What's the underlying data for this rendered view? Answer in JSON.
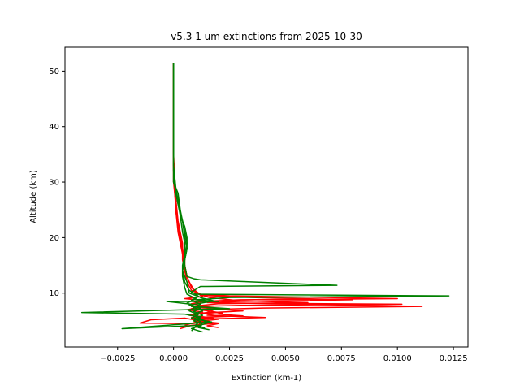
{
  "chart_data": {
    "type": "line",
    "title": "v5.3 1 um extinctions from 2025-10-30",
    "xlabel": "Extinction (km-1)",
    "ylabel": "Altitude (km)",
    "xlim": [
      -0.00485,
      0.01315
    ],
    "ylim": [
      0.3,
      54.3
    ],
    "grid": false,
    "xticks": [
      -0.0025,
      0.0,
      0.0025,
      0.005,
      0.0075,
      0.01,
      0.0125
    ],
    "xtick_labels": [
      "−0.0025",
      "0.0000",
      "0.0025",
      "0.0050",
      "0.0075",
      "0.0100",
      "0.0125"
    ],
    "yticks": [
      10,
      20,
      30,
      40,
      50
    ],
    "ytick_labels": [
      "10",
      "20",
      "30",
      "40",
      "50"
    ],
    "colors": {
      "red_series": "#ff0000",
      "green_series": "#008000"
    },
    "series": [
      {
        "color": "red",
        "points": [
          [
            0.0,
            51.5
          ],
          [
            0.0,
            40.0
          ],
          [
            0.0,
            30.0
          ],
          [
            0.0001,
            28.0
          ],
          [
            0.0001,
            25.0
          ],
          [
            0.0002,
            22.0
          ],
          [
            0.0003,
            20.0
          ],
          [
            0.0004,
            18.0
          ],
          [
            0.0005,
            16.0
          ],
          [
            0.0005,
            14.0
          ],
          [
            0.0006,
            12.0
          ],
          [
            0.0008,
            10.5
          ],
          [
            0.0012,
            9.8
          ],
          [
            0.0025,
            9.5
          ],
          [
            0.01,
            9.0
          ],
          [
            0.003,
            8.8
          ],
          [
            0.0012,
            8.5
          ],
          [
            0.0025,
            8.2
          ],
          [
            0.0102,
            8.0
          ],
          [
            0.003,
            7.8
          ],
          [
            0.0012,
            7.6
          ],
          [
            0.0008,
            7.2
          ],
          [
            0.0018,
            7.0
          ],
          [
            0.0015,
            6.5
          ],
          [
            0.0008,
            6.0
          ],
          [
            0.0018,
            5.5
          ],
          [
            0.001,
            5.0
          ],
          [
            0.002,
            4.6
          ],
          [
            0.0008,
            4.2
          ],
          [
            0.0003,
            3.6
          ]
        ]
      },
      {
        "color": "red",
        "points": [
          [
            0.0,
            51.5
          ],
          [
            0.0,
            35.0
          ],
          [
            0.0001,
            27.0
          ],
          [
            0.0002,
            23.0
          ],
          [
            0.0003,
            21.0
          ],
          [
            0.0004,
            19.0
          ],
          [
            0.0004,
            17.0
          ],
          [
            0.0005,
            15.0
          ],
          [
            0.0006,
            13.0
          ],
          [
            0.0008,
            11.0
          ],
          [
            0.0012,
            9.6
          ],
          [
            0.0035,
            9.2
          ],
          [
            0.008,
            8.8
          ],
          [
            0.003,
            8.5
          ],
          [
            0.0015,
            8.3
          ],
          [
            0.0111,
            7.6
          ],
          [
            0.004,
            7.3
          ],
          [
            0.0012,
            7.0
          ],
          [
            0.0022,
            6.4
          ],
          [
            0.0015,
            6.0
          ],
          [
            0.0041,
            5.6
          ],
          [
            0.001,
            5.3
          ],
          [
            0.0015,
            4.8
          ],
          [
            0.0008,
            4.5
          ],
          [
            -0.0015,
            4.6
          ],
          [
            -0.001,
            5.2
          ],
          [
            0.0005,
            5.5
          ],
          [
            0.0012,
            5.0
          ],
          [
            0.0005,
            4.2
          ]
        ]
      },
      {
        "color": "red",
        "points": [
          [
            0.0,
            51.5
          ],
          [
            0.0,
            30.0
          ],
          [
            0.0001,
            26.0
          ],
          [
            0.0002,
            22.0
          ],
          [
            0.0003,
            20.0
          ],
          [
            0.0004,
            18.0
          ],
          [
            0.0004,
            16.0
          ],
          [
            0.0005,
            14.0
          ],
          [
            0.0007,
            12.0
          ],
          [
            0.001,
            10.0
          ],
          [
            0.0016,
            9.2
          ],
          [
            0.003,
            8.6
          ],
          [
            0.006,
            8.3
          ],
          [
            0.002,
            8.1
          ],
          [
            0.0008,
            7.6
          ],
          [
            0.0017,
            7.2
          ],
          [
            0.0031,
            6.8
          ],
          [
            0.0012,
            6.4
          ],
          [
            0.0031,
            5.9
          ],
          [
            0.0008,
            5.6
          ],
          [
            0.002,
            5.3
          ],
          [
            0.0011,
            4.9
          ],
          [
            0.0012,
            4.2
          ],
          [
            0.001,
            3.8
          ]
        ]
      },
      {
        "color": "red",
        "points": [
          [
            0.0,
            51.5
          ],
          [
            0.0,
            32.0
          ],
          [
            0.0001,
            25.0
          ],
          [
            0.0002,
            21.0
          ],
          [
            0.0003,
            19.0
          ],
          [
            0.0004,
            17.0
          ],
          [
            0.0005,
            15.0
          ],
          [
            0.0006,
            13.0
          ],
          [
            0.0008,
            11.0
          ],
          [
            0.0013,
            9.4
          ],
          [
            0.0005,
            9.0
          ],
          [
            0.0015,
            8.6
          ],
          [
            0.0008,
            8.1
          ],
          [
            0.0014,
            7.6
          ],
          [
            0.0006,
            7.0
          ],
          [
            0.0013,
            6.6
          ],
          [
            0.0007,
            6.0
          ],
          [
            0.0016,
            5.5
          ],
          [
            0.001,
            5.0
          ],
          [
            0.002,
            4.5
          ],
          [
            0.0015,
            4.1
          ],
          [
            0.002,
            3.8
          ]
        ]
      },
      {
        "color": "green",
        "points": [
          [
            0.0,
            51.5
          ],
          [
            0.0,
            40.0
          ],
          [
            0.0,
            30.0
          ],
          [
            0.0002,
            28.0
          ],
          [
            0.0003,
            25.0
          ],
          [
            0.0004,
            23.0
          ],
          [
            0.0005,
            21.0
          ],
          [
            0.0006,
            19.0
          ],
          [
            0.0005,
            17.0
          ],
          [
            0.0005,
            15.0
          ],
          [
            0.0006,
            13.0
          ],
          [
            0.0009,
            12.6
          ],
          [
            0.0012,
            12.4
          ],
          [
            0.0073,
            11.4
          ],
          [
            0.0012,
            11.2
          ],
          [
            0.0008,
            10.2
          ],
          [
            0.001,
            9.8
          ],
          [
            0.0123,
            9.5
          ],
          [
            0.0025,
            9.2
          ],
          [
            0.001,
            8.8
          ],
          [
            0.002,
            8.5
          ],
          [
            -0.0003,
            8.5
          ],
          [
            0.0008,
            8.0
          ],
          [
            0.0008,
            7.6
          ],
          [
            0.0025,
            7.2
          ],
          [
            0.0005,
            7.0
          ],
          [
            -0.0041,
            6.5
          ],
          [
            0.0005,
            6.2
          ],
          [
            0.001,
            5.8
          ],
          [
            0.0013,
            5.2
          ],
          [
            0.0015,
            4.6
          ],
          [
            0.001,
            4.0
          ],
          [
            0.0008,
            3.2
          ]
        ]
      },
      {
        "color": "green",
        "points": [
          [
            0.0,
            51.5
          ],
          [
            0.0,
            30.0
          ],
          [
            0.0002,
            27.0
          ],
          [
            0.0003,
            24.0
          ],
          [
            0.0005,
            22.0
          ],
          [
            0.0006,
            20.0
          ],
          [
            0.0006,
            18.0
          ],
          [
            0.0005,
            16.0
          ],
          [
            0.0004,
            14.0
          ],
          [
            0.0005,
            12.0
          ],
          [
            0.0007,
            10.5
          ],
          [
            0.0012,
            9.2
          ],
          [
            0.0018,
            8.6
          ],
          [
            0.0007,
            7.8
          ],
          [
            0.0012,
            7.3
          ],
          [
            0.0009,
            6.7
          ],
          [
            0.0013,
            6.0
          ],
          [
            0.0009,
            5.4
          ],
          [
            0.0017,
            4.8
          ],
          [
            -0.0023,
            3.6
          ],
          [
            0.0012,
            4.2
          ],
          [
            0.0008,
            3.6
          ],
          [
            0.0013,
            3.0
          ]
        ]
      },
      {
        "color": "green",
        "points": [
          [
            0.0,
            51.5
          ],
          [
            0.0,
            32.0
          ],
          [
            0.0001,
            28.0
          ],
          [
            0.0003,
            24.0
          ],
          [
            0.0004,
            21.0
          ],
          [
            0.0005,
            19.0
          ],
          [
            0.0005,
            17.0
          ],
          [
            0.0004,
            15.0
          ],
          [
            0.0004,
            13.0
          ],
          [
            0.0005,
            11.0
          ],
          [
            0.0006,
            9.8
          ],
          [
            0.001,
            9.0
          ],
          [
            0.0006,
            8.2
          ],
          [
            0.001,
            7.5
          ],
          [
            0.0007,
            6.8
          ],
          [
            0.0011,
            6.1
          ],
          [
            0.0008,
            5.5
          ],
          [
            0.0012,
            4.9
          ],
          [
            0.001,
            4.3
          ],
          [
            0.0014,
            3.7
          ]
        ]
      },
      {
        "color": "green",
        "points": [
          [
            0.0,
            51.5
          ],
          [
            0.0,
            33.0
          ],
          [
            0.0001,
            29.0
          ],
          [
            0.0002,
            26.0
          ],
          [
            0.0004,
            23.0
          ],
          [
            0.0005,
            20.0
          ],
          [
            0.0006,
            18.0
          ],
          [
            0.0005,
            16.0
          ],
          [
            0.0004,
            14.0
          ],
          [
            0.0006,
            12.0
          ],
          [
            0.0007,
            10.0
          ],
          [
            0.0011,
            9.4
          ],
          [
            0.0008,
            8.7
          ],
          [
            0.0012,
            8.0
          ],
          [
            0.0009,
            7.4
          ],
          [
            0.0013,
            6.8
          ],
          [
            0.0009,
            6.2
          ],
          [
            0.0012,
            5.6
          ],
          [
            0.0009,
            5.0
          ],
          [
            0.0013,
            4.4
          ],
          [
            0.0011,
            3.8
          ],
          [
            0.0016,
            3.4
          ]
        ]
      }
    ]
  }
}
